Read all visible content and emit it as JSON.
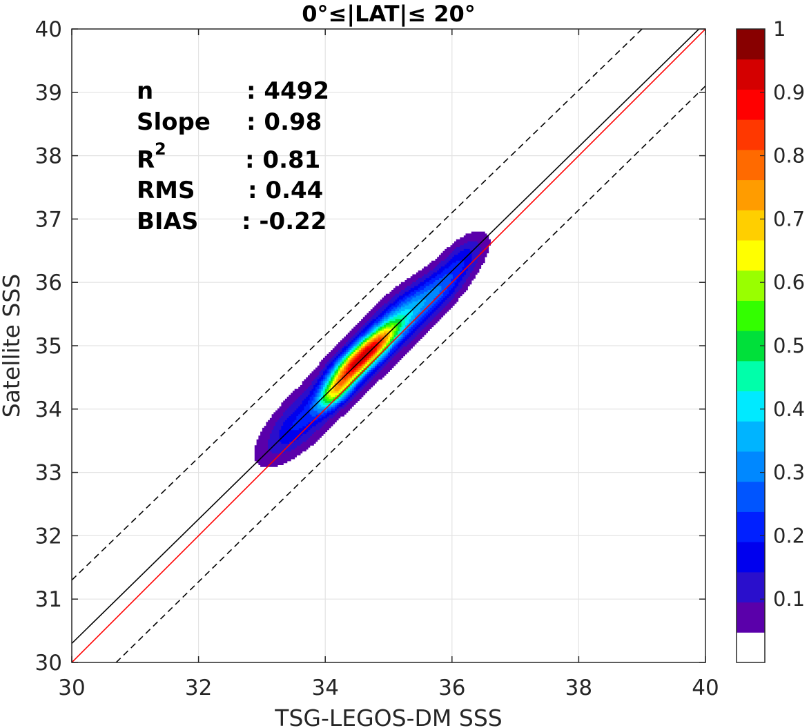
{
  "chart_data": {
    "type": "contour",
    "title": "0°≤|LAT|≤ 20°",
    "xlabel": "TSG-LEGOS-DM SSS",
    "ylabel": "Satellite SSS",
    "xlim": [
      30,
      40
    ],
    "ylim": [
      30,
      40
    ],
    "xticks": [
      "30",
      "32",
      "34",
      "36",
      "38",
      "40"
    ],
    "yticks": [
      "30",
      "31",
      "32",
      "33",
      "34",
      "35",
      "36",
      "37",
      "38",
      "39",
      "40"
    ],
    "grid": true,
    "stats": [
      {
        "label": "n",
        "value": ": 4492"
      },
      {
        "label": "Slope",
        "value": ": 0.98"
      },
      {
        "label": "R",
        "sup": "2",
        "value": ": 0.81"
      },
      {
        "label": "RMS",
        "value": ": 0.44"
      },
      {
        "label": "BIAS",
        "value": ": -0.22"
      }
    ],
    "lines": [
      {
        "role": "one-to-one",
        "color": "#ff0000",
        "style": "solid",
        "points": [
          [
            30,
            30
          ],
          [
            40,
            40
          ]
        ]
      },
      {
        "role": "regression",
        "color": "#000000",
        "style": "solid",
        "points": [
          [
            30,
            30.3
          ],
          [
            40,
            40.1
          ]
        ]
      },
      {
        "role": "upper-bound",
        "color": "#000000",
        "style": "dashed",
        "points": [
          [
            30,
            31.3
          ],
          [
            39,
            40
          ]
        ]
      },
      {
        "role": "lower-bound",
        "color": "#000000",
        "style": "dashed",
        "points": [
          [
            30.7,
            30
          ],
          [
            40,
            39.1
          ]
        ]
      }
    ],
    "density_peak": {
      "x": 34.45,
      "y": 34.7
    },
    "secondary_peaks": [
      {
        "x": 34.15,
        "y": 34.25
      },
      {
        "x": 34.85,
        "y": 35.05
      },
      {
        "x": 35.8,
        "y": 35.9
      }
    ],
    "contour_levels": [
      0.05,
      0.1,
      0.15,
      0.2,
      0.25,
      0.3,
      0.35,
      0.4,
      0.45,
      0.5,
      0.55,
      0.6,
      0.65,
      0.7,
      0.75,
      0.8,
      0.85,
      0.9,
      0.95
    ],
    "colorbar": {
      "ticks": [
        "0.1",
        "0.2",
        "0.3",
        "0.4",
        "0.5",
        "0.6",
        "0.7",
        "0.8",
        "0.9",
        "1"
      ],
      "tick_values": [
        0.1,
        0.2,
        0.3,
        0.4,
        0.5,
        0.6,
        0.7,
        0.8,
        0.9,
        1.0
      ],
      "colors": [
        "#ffffff",
        "#5a00aa",
        "#2a0fcc",
        "#0000ee",
        "#0020ff",
        "#0055ff",
        "#0088ff",
        "#00b4ff",
        "#00eaff",
        "#00ffaa",
        "#00e03a",
        "#33ff00",
        "#99ff00",
        "#ffff00",
        "#ffcf00",
        "#ff9c00",
        "#ff6a00",
        "#ff3800",
        "#ff0000",
        "#d40000",
        "#880000"
      ]
    }
  }
}
